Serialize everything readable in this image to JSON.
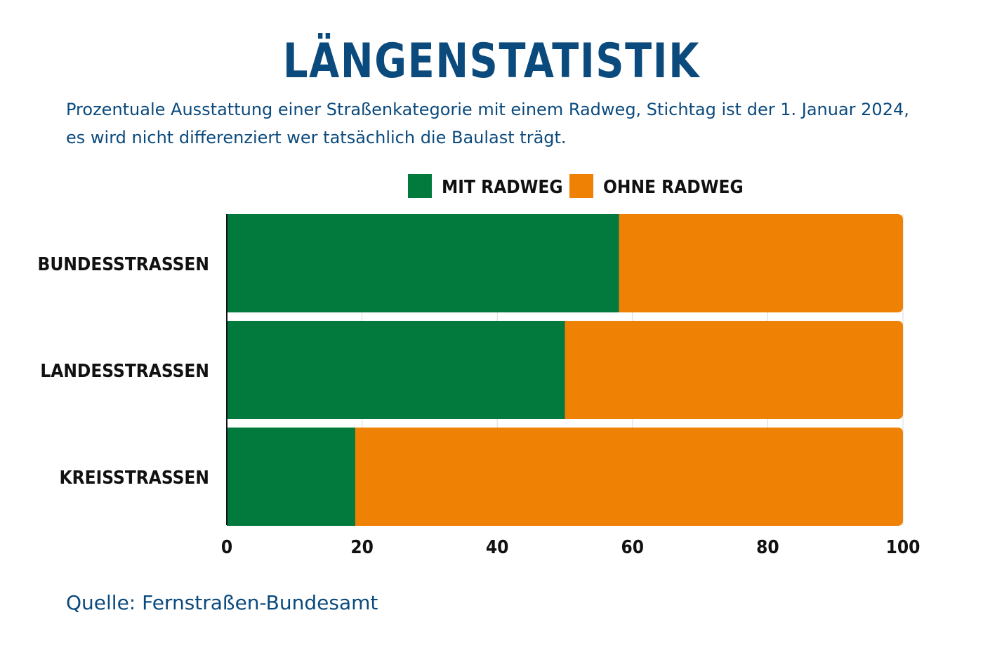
{
  "title": "LÄNGENSTATISTIK",
  "subtitle": "Prozentuale Ausstattung einer Straßenkategorie mit einem Radweg, Stichtag ist der 1. Januar 2024, es wird nicht differenziert wer tatsächlich die Baulast trägt.",
  "source": "Quelle: Fernstraßen-Bundesamt",
  "colors": {
    "title": "#0b4a7d",
    "mit": "#037a3d",
    "ohne": "#ef8104",
    "grid": "#d9d9d9"
  },
  "chart_data": {
    "type": "bar",
    "orientation": "horizontal",
    "stacked": true,
    "categories": [
      "BUNDESSTRASSEN",
      "LANDESSTRASSEN",
      "KREISSTRASSEN"
    ],
    "series": [
      {
        "name": "MIT RADWEG",
        "values": [
          58,
          50,
          19
        ]
      },
      {
        "name": "OHNE RADWEG",
        "values": [
          42,
          50,
          81
        ]
      }
    ],
    "xlim": [
      0,
      100
    ],
    "xticks": [
      0,
      20,
      40,
      60,
      80,
      100
    ],
    "grid": true,
    "legend": "top-center"
  }
}
